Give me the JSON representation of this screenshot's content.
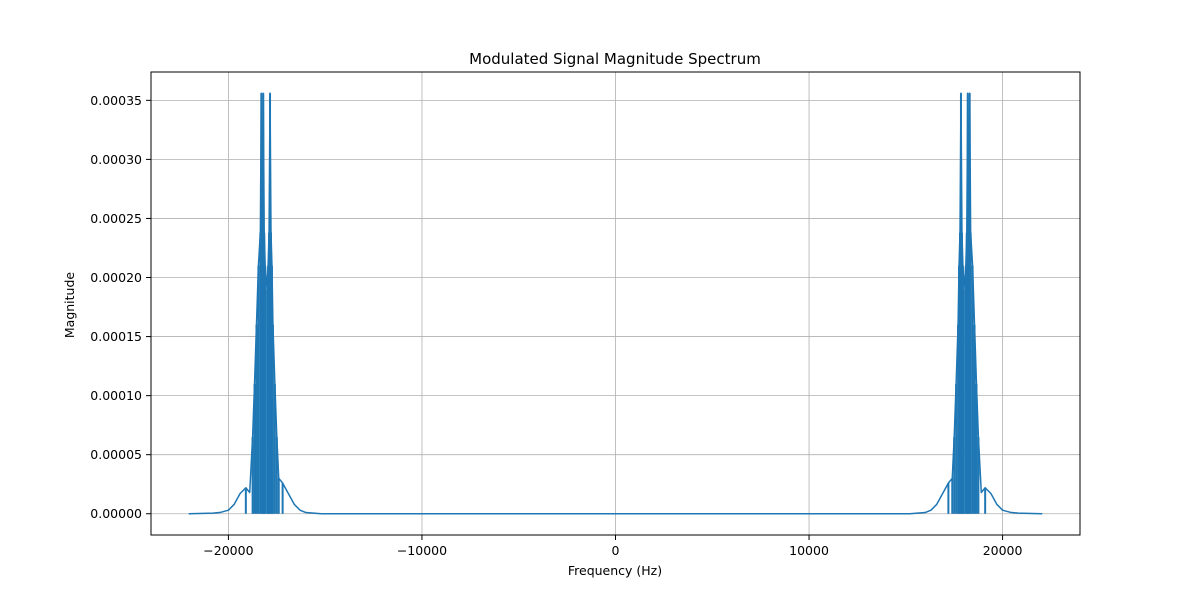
{
  "chart_data": {
    "type": "line",
    "title": "Modulated Signal Magnitude Spectrum",
    "xlabel": "Frequency (Hz)",
    "ylabel": "Magnitude",
    "xlim": [
      -24000,
      24000
    ],
    "ylim": [
      -1.8e-05,
      0.000374
    ],
    "x_ticks": [
      -20000,
      -10000,
      0,
      10000,
      20000
    ],
    "x_tick_labels": [
      "−20000",
      "−10000",
      "0",
      "10000",
      "20000"
    ],
    "y_ticks": [
      0,
      5e-05,
      0.0001,
      0.00015,
      0.0002,
      0.00025,
      0.0003,
      0.00035
    ],
    "y_tick_labels": [
      "0.00000",
      "0.00005",
      "0.00010",
      "0.00015",
      "0.00020",
      "0.00025",
      "0.00030",
      "0.00035"
    ],
    "grid": true,
    "line_color": "#1f77b4",
    "series": [
      {
        "x": [
          -22050,
          -20800,
          -20400,
          -20000,
          -19700,
          -19400,
          -19100,
          -18900,
          -18750,
          -18650,
          -18550,
          -18450,
          -18350,
          -18300,
          -18250,
          -18200,
          -18150,
          -18100,
          -18000,
          -17950,
          -17900,
          -17850,
          -17800,
          -17750,
          -17700,
          -17600,
          -17500,
          -17400,
          -17200,
          -16900,
          -16600,
          -16300,
          -16000,
          -15600,
          -15200,
          -14800,
          14800,
          15200,
          15600,
          16000,
          16300,
          16600,
          16900,
          17200,
          17400,
          17500,
          17600,
          17700,
          17750,
          17800,
          17850,
          17900,
          17950,
          18000,
          18100,
          18150,
          18200,
          18250,
          18300,
          18350,
          18450,
          18550,
          18650,
          18750,
          18900,
          19100,
          19400,
          19700,
          20000,
          20400,
          20800,
          22050
        ],
        "y": [
          0,
          5e-07,
          1.2e-06,
          3e-06,
          8e-06,
          1.7e-05,
          2.2e-05,
          1.8e-05,
          6.5e-05,
          0.00011,
          0.00016,
          0.00021,
          0.000238,
          0.000356,
          0.00021,
          0.000356,
          0.000238,
          0.00021,
          0.00019,
          0.00021,
          0.000238,
          0.000356,
          0.000238,
          0.00021,
          0.00016,
          0.00011,
          6.5e-05,
          3e-05,
          2.6e-05,
          1.7e-05,
          8e-06,
          3e-06,
          1e-06,
          5e-07,
          0,
          0,
          0,
          0,
          5e-07,
          1e-06,
          3e-06,
          8e-06,
          1.7e-05,
          2.6e-05,
          3e-05,
          6.5e-05,
          0.00011,
          0.00016,
          0.00021,
          0.000238,
          0.000356,
          0.000238,
          0.00021,
          0.00019,
          0.00021,
          0.000238,
          0.000356,
          0.00021,
          0.000356,
          0.000238,
          0.00021,
          0.00016,
          0.00011,
          6.5e-05,
          1.8e-05,
          2.2e-05,
          1.7e-05,
          8e-06,
          3e-06,
          1.2e-06,
          5e-07,
          0
        ]
      }
    ]
  }
}
